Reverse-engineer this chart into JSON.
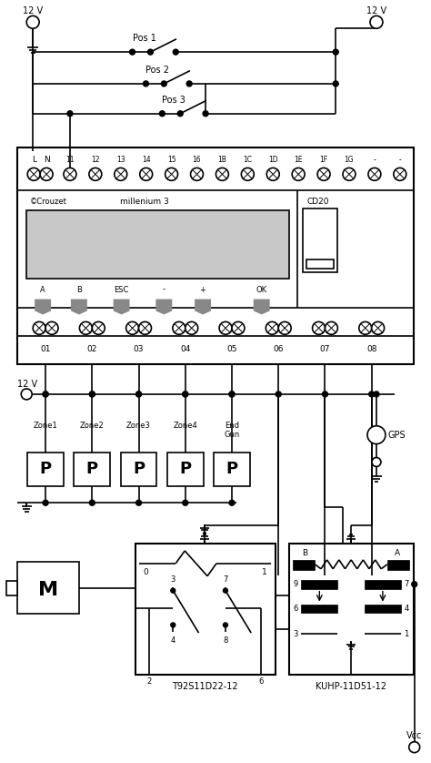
{
  "bg_color": "#ffffff",
  "line_color": "#000000",
  "fig_width": 4.74,
  "fig_height": 8.38,
  "dpi": 100,
  "input_labels": [
    "L",
    "N",
    "11",
    "12",
    "13",
    "14",
    "15",
    "16",
    "1B",
    "1C",
    "1D",
    "1E",
    "1F",
    "1G",
    "-",
    "-"
  ],
  "output_labels": [
    "01",
    "02",
    "03",
    "04",
    "05",
    "06",
    "07",
    "08"
  ],
  "zone_labels": [
    "Zone1",
    "Zone2",
    "Zone3",
    "Zone4",
    "End\nGun"
  ],
  "relay1_label": "T92S11D22-12",
  "relay2_label": "KUHP-11D51-12",
  "motor_label": "M",
  "gps_label": "GPS",
  "vcc_label": "Vcc",
  "v12_label": "12 V"
}
